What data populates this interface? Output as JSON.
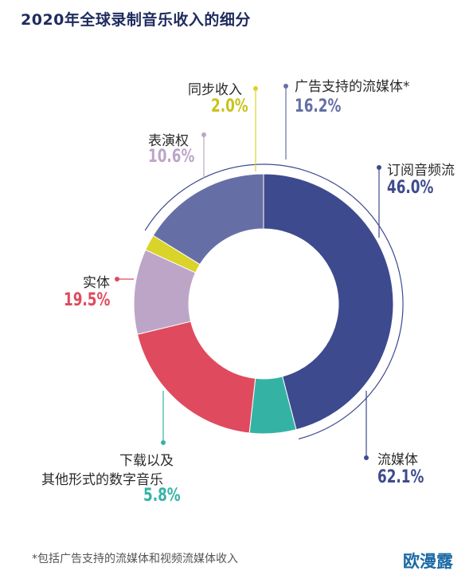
{
  "chart_data": {
    "type": "pie",
    "title": "2020年全球录制音乐收入的细分",
    "slices": [
      {
        "label": "订阅音频流",
        "value": 46.0,
        "display": "46.0%",
        "color": "#3e4a8e"
      },
      {
        "label": "下载以及其他形式的数字音乐",
        "value": 5.8,
        "display": "5.8%",
        "color": "#34b3a4"
      },
      {
        "label": "实体",
        "value": 19.5,
        "display": "19.5%",
        "color": "#e04a5e"
      },
      {
        "label": "表演权",
        "value": 10.6,
        "display": "10.6%",
        "color": "#bda5c8"
      },
      {
        "label": "同步收入",
        "value": 2.0,
        "display": "2.0%",
        "color": "#d9d32a"
      },
      {
        "label": "广告支持的流媒体*",
        "value": 16.2,
        "display": "16.2%",
        "color": "#666fa5"
      }
    ],
    "groups": [
      {
        "label": "流媒体",
        "value": 62.1,
        "display": "62.1%",
        "color": "#3e4a8e"
      }
    ],
    "footnote": "*包括广告支持的流媒体和视频流媒体收入"
  },
  "watermark": "欧漫露",
  "labels": {
    "sync_line1": "同步收入",
    "perf_line1": "表演权",
    "ad_line1": "广告支持的流媒体*",
    "sub_line1": "订阅音频流",
    "phys_line1": "实体",
    "dl_line1": "下载以及",
    "dl_line2": "其他形式的数字音乐",
    "stream_line1": "流媒体"
  }
}
